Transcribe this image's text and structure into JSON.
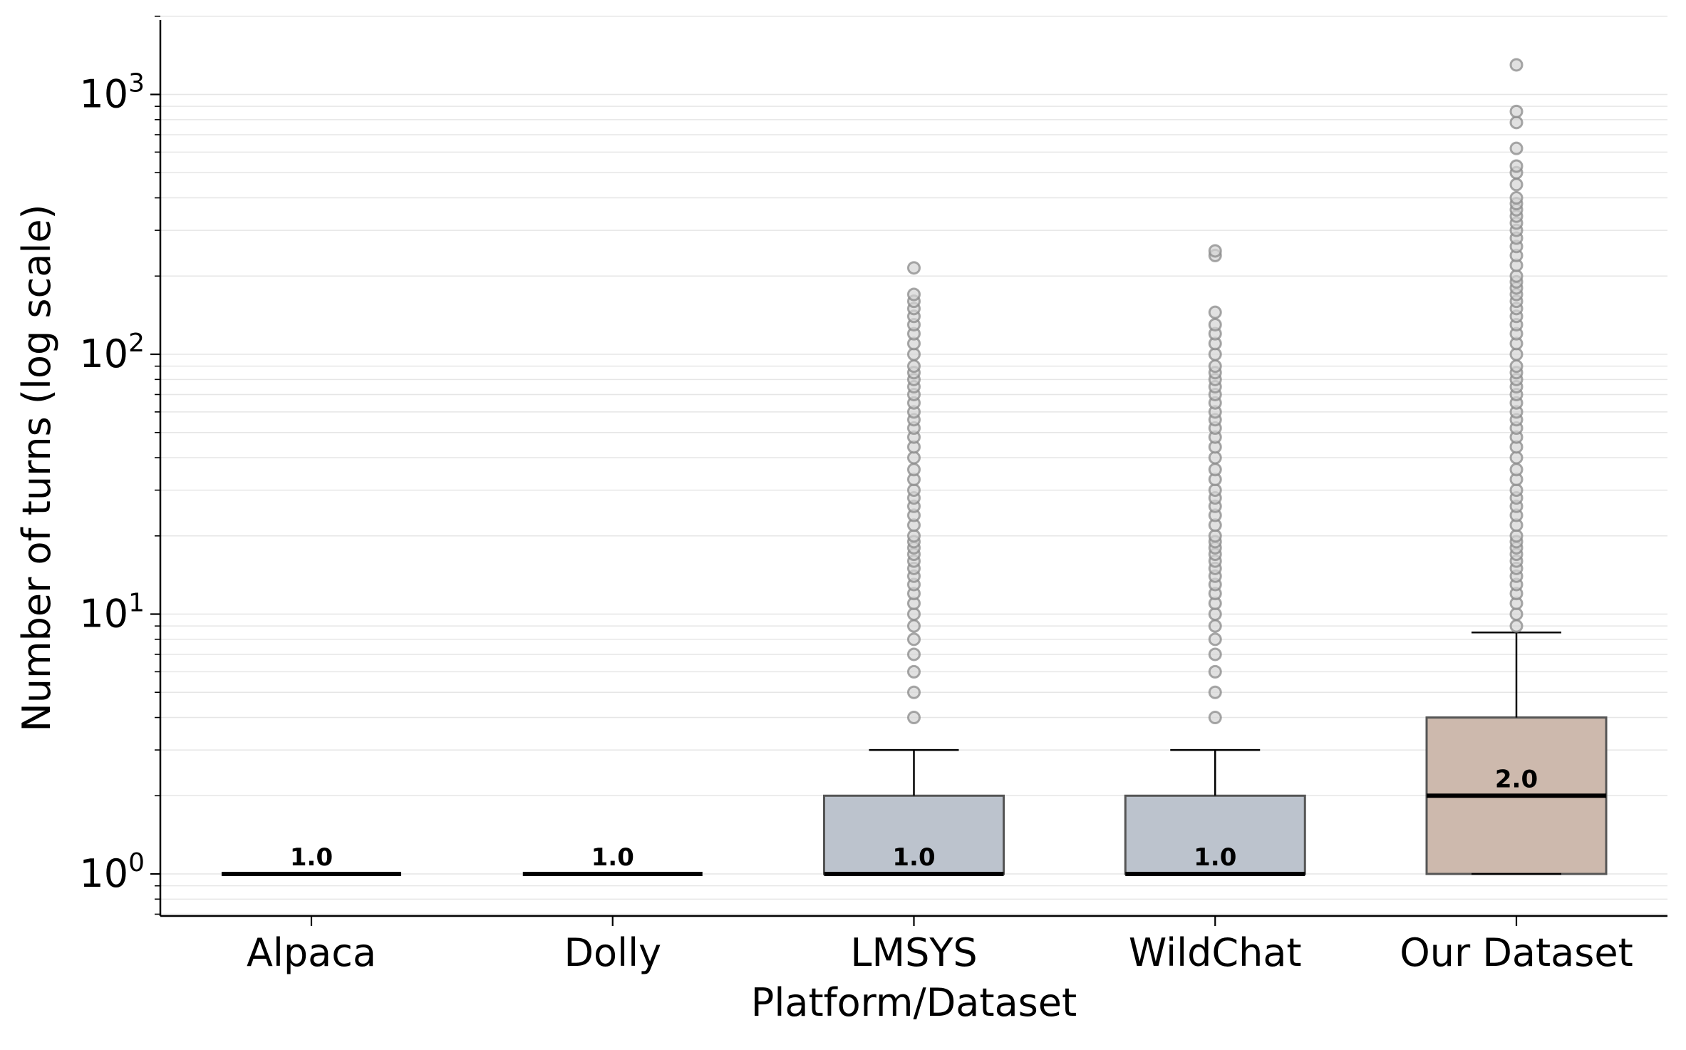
{
  "chart_data": {
    "type": "box",
    "xlabel": "Platform/Dataset",
    "ylabel": "Number of turns (log scale)",
    "yscale": "log",
    "ylim": [
      0.7,
      2000
    ],
    "yticks": [
      {
        "value": 1,
        "base": "10",
        "exp": "0"
      },
      {
        "value": 10,
        "base": "10",
        "exp": "1"
      },
      {
        "value": 100,
        "base": "10",
        "exp": "2"
      },
      {
        "value": 1000,
        "base": "10",
        "exp": "3"
      }
    ],
    "grid": true,
    "categories": [
      "Alpaca",
      "Dolly",
      "LMSYS",
      "WildChat",
      "Our Dataset"
    ],
    "boxes": [
      {
        "category": "Alpaca",
        "q1": 1,
        "median": 1,
        "q3": 1,
        "whisker_low": 1,
        "whisker_high": 1,
        "median_label": "1.0",
        "color": null,
        "outliers": []
      },
      {
        "category": "Dolly",
        "q1": 1,
        "median": 1,
        "q3": 1,
        "whisker_low": 1,
        "whisker_high": 1,
        "median_label": "1.0",
        "color": null,
        "outliers": []
      },
      {
        "category": "LMSYS",
        "q1": 1,
        "median": 1,
        "q3": 2,
        "whisker_low": 1,
        "whisker_high": 3,
        "median_label": "1.0",
        "color": "#bcc3cd",
        "outliers": [
          4,
          5,
          6,
          7,
          8,
          9,
          10,
          11,
          12,
          13,
          14,
          15,
          16,
          17,
          18,
          19,
          20,
          22,
          24,
          26,
          28,
          30,
          33,
          36,
          40,
          44,
          48,
          52,
          56,
          60,
          65,
          70,
          75,
          80,
          85,
          90,
          100,
          110,
          120,
          130,
          140,
          150,
          160,
          170,
          215
        ]
      },
      {
        "category": "WildChat",
        "q1": 1,
        "median": 1,
        "q3": 2,
        "whisker_low": 1,
        "whisker_high": 3,
        "median_label": "1.0",
        "color": "#bcc3cd",
        "outliers": [
          4,
          5,
          6,
          7,
          8,
          9,
          10,
          11,
          12,
          13,
          14,
          15,
          16,
          17,
          18,
          19,
          20,
          22,
          24,
          26,
          28,
          30,
          33,
          36,
          40,
          44,
          48,
          52,
          56,
          60,
          65,
          70,
          75,
          80,
          85,
          90,
          100,
          110,
          120,
          130,
          145,
          240,
          250
        ]
      },
      {
        "category": "Our Dataset",
        "q1": 1,
        "median": 2,
        "q3": 4,
        "whisker_low": 1,
        "whisker_high": 8.5,
        "median_label": "2.0",
        "color": "#cdb9ad",
        "outliers": [
          9,
          10,
          11,
          12,
          13,
          14,
          15,
          16,
          17,
          18,
          19,
          20,
          22,
          24,
          26,
          28,
          30,
          33,
          36,
          40,
          44,
          48,
          52,
          56,
          60,
          65,
          70,
          75,
          80,
          85,
          90,
          100,
          110,
          120,
          130,
          140,
          150,
          160,
          170,
          180,
          190,
          200,
          220,
          240,
          260,
          280,
          300,
          320,
          340,
          360,
          380,
          400,
          450,
          500,
          530,
          620,
          780,
          860,
          1300
        ]
      }
    ]
  }
}
